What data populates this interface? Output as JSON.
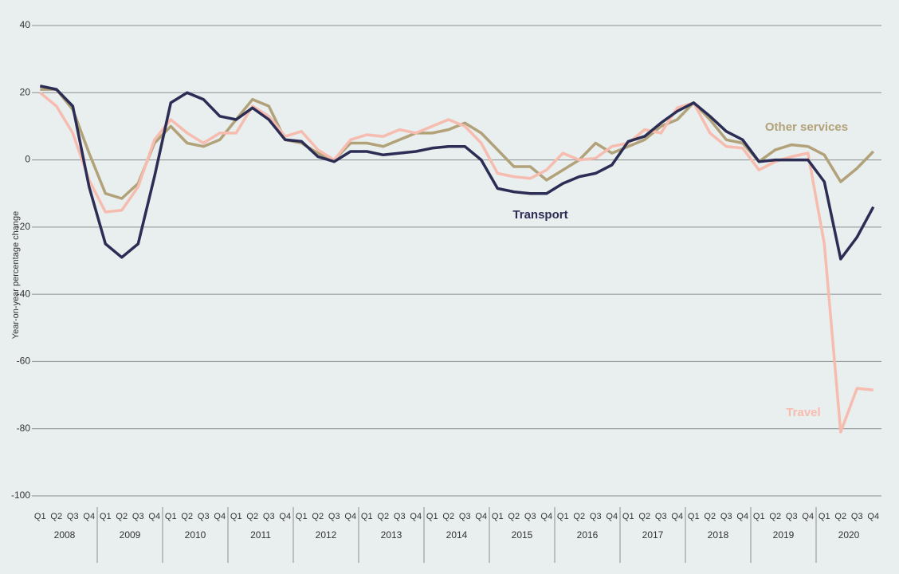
{
  "chart_data": {
    "type": "line",
    "y_label": "Year-on-year percentage change",
    "categories": [
      "Q1",
      "Q2",
      "Q3",
      "Q4",
      "Q1",
      "Q2",
      "Q3",
      "Q4",
      "Q1",
      "Q2",
      "Q3",
      "Q4",
      "Q1",
      "Q2",
      "Q3",
      "Q4",
      "Q1",
      "Q2",
      "Q3",
      "Q4",
      "Q1",
      "Q2",
      "Q3",
      "Q4",
      "Q1",
      "Q2",
      "Q3",
      "Q4",
      "Q1",
      "Q2",
      "Q3",
      "Q4",
      "Q1",
      "Q2",
      "Q3",
      "Q4",
      "Q1",
      "Q2",
      "Q3",
      "Q4",
      "Q1",
      "Q2",
      "Q3",
      "Q4",
      "Q1",
      "Q2",
      "Q3",
      "Q4",
      "Q1",
      "Q2",
      "Q3",
      "Q4"
    ],
    "year_groups": [
      "2008",
      "2009",
      "2010",
      "2011",
      "2012",
      "2013",
      "2014",
      "2015",
      "2016",
      "2017",
      "2018",
      "2019",
      "2020"
    ],
    "ylim": [
      -100,
      40
    ],
    "yticks": [
      40,
      20,
      0,
      -20,
      -40,
      -60,
      -80,
      -100
    ],
    "grid": true,
    "series": [
      {
        "name": "Other services",
        "color": "#b2a27a",
        "values": [
          21,
          21,
          15,
          2,
          -10,
          -11.5,
          -7,
          5,
          10,
          5,
          4,
          6,
          12,
          18,
          16,
          6,
          5,
          2,
          0,
          5,
          5,
          4,
          6,
          8,
          8,
          9,
          11,
          8,
          3,
          -2,
          -2,
          -6,
          -3,
          0,
          5,
          2,
          4,
          6,
          10,
          12,
          17,
          12,
          6,
          5,
          -0.5,
          3,
          4.5,
          4,
          1.5,
          -6.5,
          -2.5,
          2.5
        ]
      },
      {
        "name": "Travel",
        "color": "#f7bcb0",
        "values": [
          20,
          16,
          8,
          -6,
          -15.5,
          -15,
          -8,
          6,
          12,
          8,
          5,
          8,
          8,
          16,
          13,
          7,
          8.5,
          3,
          0,
          6,
          7.5,
          7,
          9,
          8,
          10,
          12,
          10,
          5,
          -4,
          -5,
          -5.5,
          -3,
          2,
          0,
          0.5,
          4,
          5,
          9,
          8,
          15.5,
          17,
          8,
          4,
          3.5,
          -3,
          -0.5,
          1,
          2,
          -25,
          -81,
          -68,
          -68.5
        ]
      },
      {
        "name": "Transport",
        "color": "#2b2d55",
        "values": [
          22,
          21,
          16,
          -8,
          -25,
          -29,
          -25,
          -5,
          17,
          20,
          18,
          13,
          12,
          15.5,
          12,
          6,
          5.5,
          1,
          -0.5,
          2.5,
          2.5,
          1.5,
          2,
          2.5,
          3.5,
          4,
          4,
          0,
          -8.5,
          -9.5,
          -10,
          -10,
          -7,
          -5,
          -4,
          -1.5,
          5.5,
          7,
          11,
          14.5,
          17,
          13,
          8.5,
          6,
          -0.5,
          0,
          0,
          0,
          -6.5,
          -29.5,
          -23,
          -14
        ]
      }
    ]
  }
}
